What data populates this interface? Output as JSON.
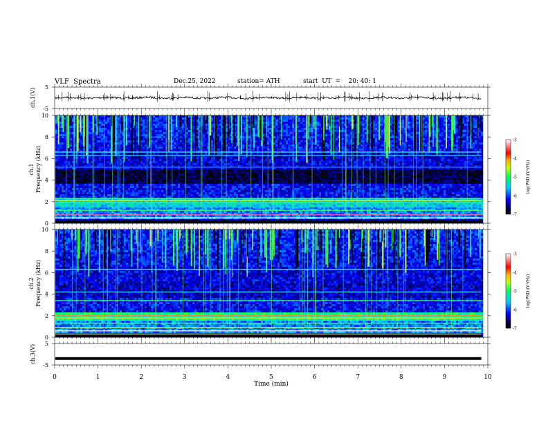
{
  "header": {
    "title": "VLF  Spectra",
    "date": "Dec.25, 2022",
    "station": "station= ATH",
    "start": "start  UT  =    20: 40: 1"
  },
  "chart_data": [
    {
      "type": "line",
      "ylabel": "ch.1(V)",
      "ylim": [
        -5,
        5
      ],
      "y_ticks": [
        "5",
        "-5"
      ],
      "xlim": [
        0,
        10
      ],
      "trace_mean": 0,
      "trace_color": "#000000"
    },
    {
      "type": "heatmap",
      "ylabel_line1": "ch.1",
      "ylabel_line2": "Frequency  (kHz)",
      "ylim": [
        0,
        10
      ],
      "y_ticks": [
        "0",
        "2",
        "4",
        "6",
        "8",
        "10"
      ],
      "xlim": [
        0,
        9.85
      ],
      "colorbar": {
        "label": "log(PSD)(V²/Hz)",
        "ticks": [
          "-3",
          "-4",
          "-5",
          "-6",
          "-7"
        ],
        "range": [
          -7,
          -3
        ]
      }
    },
    {
      "type": "heatmap",
      "ylabel_line1": "ch.2",
      "ylabel_line2": "Frequency  (kHz)",
      "ylim": [
        0,
        10
      ],
      "y_ticks": [
        "0",
        "2",
        "4",
        "6",
        "8",
        "10"
      ],
      "xlim": [
        0,
        9.85
      ],
      "colorbar": {
        "label": "log(PSD)(V²/Hz)",
        "ticks": [
          "-3",
          "-4",
          "-5",
          "-6",
          "-7"
        ],
        "range": [
          -7,
          -3
        ]
      }
    },
    {
      "type": "line",
      "ylabel": "ch.3(V)",
      "ylim": [
        -5,
        5
      ],
      "y_ticks": [
        "5",
        "-5"
      ],
      "xlim": [
        0,
        10
      ],
      "trace_mean": -2,
      "trace_color": "#000000"
    }
  ],
  "xaxis": {
    "label": "Time  (min)",
    "ticks": [
      "0",
      "1",
      "2",
      "3",
      "4",
      "5",
      "6",
      "7",
      "8",
      "9",
      "10"
    ]
  }
}
